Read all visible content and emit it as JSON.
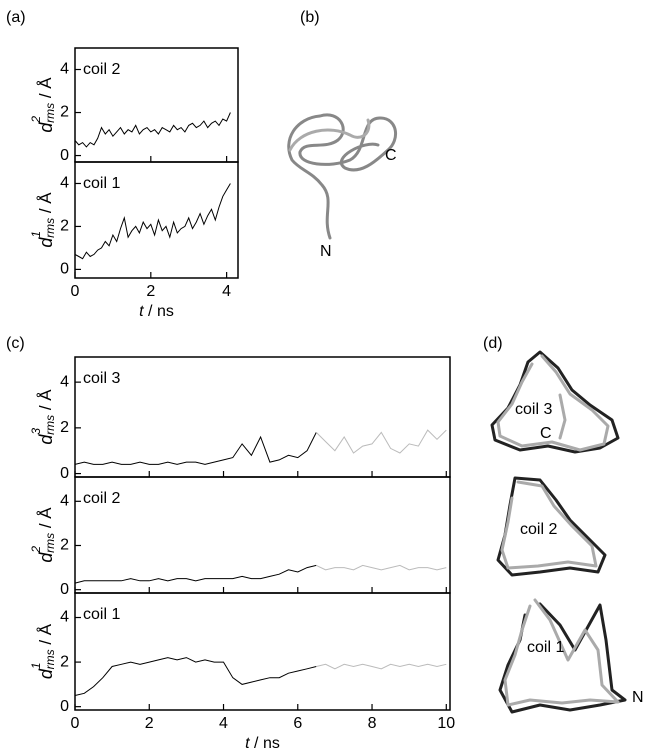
{
  "figure": {
    "panel_labels": [
      "(a)",
      "(b)",
      "(c)",
      "(d)"
    ],
    "structure_b_labels": [
      "C",
      "N"
    ],
    "structure_d_labels": [
      "coil 3",
      "C",
      "coil 2",
      "coil 1",
      "N"
    ]
  },
  "chart_data": [
    {
      "type": "line",
      "annotation": "coil 2",
      "ylabel": [
        "d",
        "2",
        "rms",
        " / Å"
      ],
      "show_xtick_labels": false,
      "x": [
        0,
        0.1,
        0.2,
        0.3,
        0.4,
        0.5,
        0.6,
        0.7,
        0.8,
        0.9,
        1,
        1.1,
        1.2,
        1.3,
        1.4,
        1.5,
        1.6,
        1.7,
        1.8,
        1.9,
        2,
        2.1,
        2.2,
        2.3,
        2.4,
        2.5,
        2.6,
        2.7,
        2.8,
        2.9,
        3,
        3.1,
        3.2,
        3.3,
        3.4,
        3.5,
        3.6,
        3.7,
        3.8,
        3.9,
        4,
        4.1
      ],
      "series": [
        {
          "color": "#000000",
          "values": [
            0.7,
            0.5,
            0.6,
            0.4,
            0.6,
            0.5,
            0.8,
            1.3,
            1.0,
            1.2,
            0.9,
            1.1,
            1.3,
            1.0,
            1.2,
            1.1,
            1.4,
            1.0,
            1.2,
            1.3,
            1.1,
            1.2,
            1.0,
            1.3,
            1.2,
            1.1,
            1.4,
            1.2,
            1.3,
            1.1,
            1.4,
            1.5,
            1.3,
            1.4,
            1.6,
            1.3,
            1.5,
            1.6,
            1.4,
            1.7,
            1.6,
            2.0
          ]
        }
      ],
      "xlim": [
        0,
        4.3
      ],
      "ylim": [
        -0.3,
        5
      ],
      "xticks": [
        0,
        2,
        4
      ],
      "yticks": [
        0,
        2,
        4
      ]
    },
    {
      "type": "line",
      "annotation": "coil 1",
      "ylabel": [
        "d",
        "1",
        "rms",
        " / Å"
      ],
      "show_xtick_labels": true,
      "xlabel": [
        "t",
        " / ns"
      ],
      "x": [
        0,
        0.1,
        0.2,
        0.3,
        0.4,
        0.5,
        0.6,
        0.7,
        0.8,
        0.9,
        1,
        1.1,
        1.2,
        1.3,
        1.4,
        1.5,
        1.6,
        1.7,
        1.8,
        1.9,
        2,
        2.1,
        2.2,
        2.3,
        2.4,
        2.5,
        2.6,
        2.7,
        2.8,
        2.9,
        3,
        3.1,
        3.2,
        3.3,
        3.4,
        3.5,
        3.6,
        3.7,
        3.8,
        3.9,
        4,
        4.1
      ],
      "series": [
        {
          "color": "#000000",
          "values": [
            0.7,
            0.6,
            0.5,
            0.8,
            0.6,
            0.7,
            0.9,
            1.0,
            1.3,
            1.1,
            1.6,
            1.3,
            1.9,
            2.4,
            1.5,
            1.8,
            2.0,
            1.7,
            2.2,
            1.9,
            2.1,
            1.6,
            2.3,
            1.8,
            2.0,
            1.5,
            2.2,
            1.7,
            1.9,
            2.0,
            2.4,
            1.9,
            2.2,
            2.6,
            2.1,
            2.5,
            2.8,
            2.3,
            2.9,
            3.4,
            3.7,
            4.0
          ]
        }
      ],
      "xlim": [
        0,
        4.3
      ],
      "ylim": [
        -0.4,
        5
      ],
      "xticks": [
        0,
        2,
        4
      ],
      "yticks": [
        0,
        2,
        4
      ]
    },
    {
      "type": "line",
      "annotation": "coil 3",
      "ylabel": [
        "d",
        "3",
        "rms",
        " / Å"
      ],
      "show_xtick_labels": false,
      "x": [
        0,
        0.25,
        0.5,
        0.75,
        1,
        1.25,
        1.5,
        1.75,
        2,
        2.25,
        2.5,
        2.75,
        3,
        3.25,
        3.5,
        3.75,
        4,
        4.25,
        4.5,
        4.75,
        5,
        5.25,
        5.5,
        5.75,
        6,
        6.25,
        6.5,
        6.75,
        7,
        7.25,
        7.5,
        7.75,
        8,
        8.25,
        8.5,
        8.75,
        9,
        9.25,
        9.5,
        9.75,
        10
      ],
      "series": [
        {
          "color": "#000000",
          "values": [
            0.4,
            0.5,
            0.4,
            0.4,
            0.5,
            0.4,
            0.4,
            0.5,
            0.4,
            0.4,
            0.5,
            0.4,
            0.5,
            0.5,
            0.4,
            0.5,
            0.6,
            0.7,
            1.3,
            0.8,
            1.6,
            0.5,
            0.6,
            0.8,
            0.7,
            1.0,
            1.8,
            null,
            null,
            null,
            null,
            null,
            null,
            null,
            null,
            null,
            null,
            null,
            null,
            null,
            null
          ]
        },
        {
          "color": "#bbbbbb",
          "values": [
            null,
            null,
            null,
            null,
            null,
            null,
            null,
            null,
            null,
            null,
            null,
            null,
            null,
            null,
            null,
            null,
            null,
            null,
            null,
            null,
            null,
            null,
            null,
            null,
            null,
            null,
            1.8,
            1.4,
            1.0,
            1.6,
            0.9,
            1.2,
            1.3,
            1.8,
            1.1,
            0.9,
            1.3,
            1.2,
            1.9,
            1.5,
            1.9
          ]
        }
      ],
      "xlim": [
        0,
        10.1
      ],
      "ylim": [
        -0.15,
        5.1
      ],
      "xticks": [
        0,
        2,
        4,
        6,
        8,
        10
      ],
      "yticks": [
        0,
        2,
        4
      ]
    },
    {
      "type": "line",
      "annotation": "coil 2",
      "ylabel": [
        "d",
        "2",
        "rms",
        " / Å"
      ],
      "show_xtick_labels": false,
      "x": [
        0,
        0.25,
        0.5,
        0.75,
        1,
        1.25,
        1.5,
        1.75,
        2,
        2.25,
        2.5,
        2.75,
        3,
        3.25,
        3.5,
        3.75,
        4,
        4.25,
        4.5,
        4.75,
        5,
        5.25,
        5.5,
        5.75,
        6,
        6.25,
        6.5,
        6.75,
        7,
        7.25,
        7.5,
        7.75,
        8,
        8.25,
        8.5,
        8.75,
        9,
        9.25,
        9.5,
        9.75,
        10
      ],
      "series": [
        {
          "color": "#000000",
          "values": [
            0.3,
            0.4,
            0.4,
            0.4,
            0.4,
            0.4,
            0.5,
            0.4,
            0.4,
            0.5,
            0.4,
            0.5,
            0.5,
            0.4,
            0.5,
            0.5,
            0.5,
            0.5,
            0.6,
            0.5,
            0.5,
            0.6,
            0.7,
            0.9,
            0.8,
            1.0,
            1.1,
            null,
            null,
            null,
            null,
            null,
            null,
            null,
            null,
            null,
            null,
            null,
            null,
            null,
            null
          ]
        },
        {
          "color": "#bbbbbb",
          "values": [
            null,
            null,
            null,
            null,
            null,
            null,
            null,
            null,
            null,
            null,
            null,
            null,
            null,
            null,
            null,
            null,
            null,
            null,
            null,
            null,
            null,
            null,
            null,
            null,
            null,
            null,
            1.1,
            0.9,
            1.0,
            1.0,
            0.9,
            1.1,
            1.0,
            0.9,
            1.0,
            1.1,
            0.9,
            1.0,
            1.0,
            0.9,
            1.0
          ]
        }
      ],
      "xlim": [
        0,
        10.1
      ],
      "ylim": [
        -0.15,
        5.1
      ],
      "xticks": [
        0,
        2,
        4,
        6,
        8,
        10
      ],
      "yticks": [
        0,
        2,
        4
      ]
    },
    {
      "type": "line",
      "annotation": "coil 1",
      "ylabel": [
        "d",
        "1",
        "rms",
        " / Å"
      ],
      "show_xtick_labels": true,
      "xlabel": [
        "t",
        " / ns"
      ],
      "x": [
        0,
        0.25,
        0.5,
        0.75,
        1,
        1.25,
        1.5,
        1.75,
        2,
        2.25,
        2.5,
        2.75,
        3,
        3.25,
        3.5,
        3.75,
        4,
        4.25,
        4.5,
        4.75,
        5,
        5.25,
        5.5,
        5.75,
        6,
        6.25,
        6.5,
        6.75,
        7,
        7.25,
        7.5,
        7.75,
        8,
        8.25,
        8.5,
        8.75,
        9,
        9.25,
        9.5,
        9.75,
        10
      ],
      "series": [
        {
          "color": "#000000",
          "values": [
            0.5,
            0.6,
            0.9,
            1.3,
            1.8,
            1.9,
            2.0,
            1.9,
            2.0,
            2.1,
            2.2,
            2.1,
            2.2,
            2.0,
            2.1,
            2.0,
            2.0,
            1.3,
            1.0,
            1.1,
            1.2,
            1.3,
            1.3,
            1.5,
            1.6,
            1.7,
            1.8,
            null,
            null,
            null,
            null,
            null,
            null,
            null,
            null,
            null,
            null,
            null,
            null,
            null,
            null
          ]
        },
        {
          "color": "#bbbbbb",
          "values": [
            null,
            null,
            null,
            null,
            null,
            null,
            null,
            null,
            null,
            null,
            null,
            null,
            null,
            null,
            null,
            null,
            null,
            null,
            null,
            null,
            null,
            null,
            null,
            null,
            null,
            null,
            1.8,
            1.9,
            1.7,
            1.9,
            1.8,
            1.9,
            1.8,
            1.7,
            1.9,
            1.8,
            1.9,
            1.8,
            1.9,
            1.8,
            1.9
          ]
        }
      ],
      "xlim": [
        0,
        10.1
      ],
      "ylim": [
        -0.15,
        5.1
      ],
      "xticks": [
        0,
        2,
        4,
        6,
        8,
        10
      ],
      "yticks": [
        0,
        2,
        4
      ]
    }
  ]
}
